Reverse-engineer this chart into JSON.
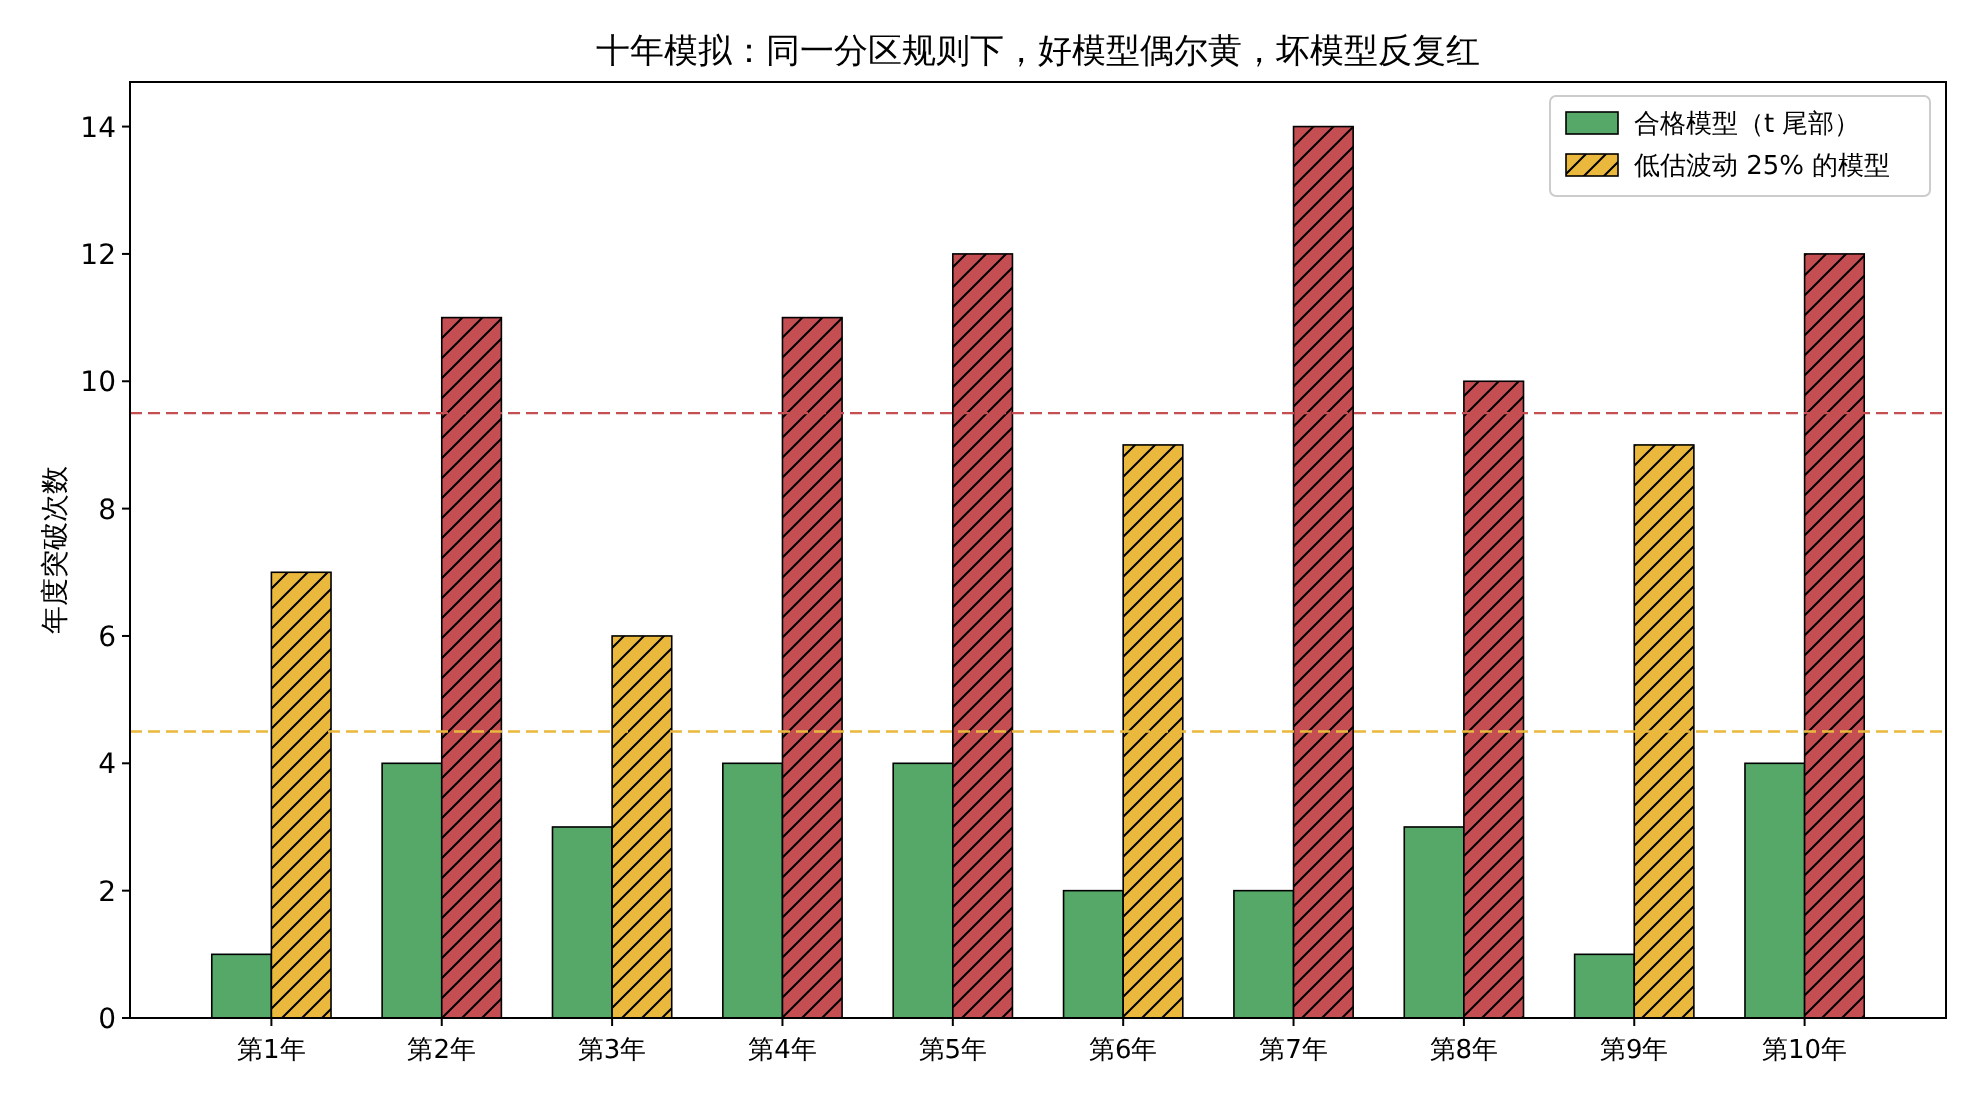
{
  "chart_data": {
    "type": "bar",
    "title": "十年模拟：同一分区规则下，好模型偶尔黄，坏模型反复红",
    "ylabel": "年度突破次数",
    "categories": [
      "第1年",
      "第2年",
      "第3年",
      "第4年",
      "第5年",
      "第6年",
      "第7年",
      "第8年",
      "第9年",
      "第10年"
    ],
    "series": [
      {
        "name": "合格模型（t 尾部）",
        "color": "#55a868",
        "values": [
          1,
          4,
          3,
          4,
          4,
          2,
          2,
          3,
          1,
          4
        ]
      },
      {
        "name": "低估波动 25% 的模型",
        "color": "#e9b83c",
        "colors": [
          "#e9b83c",
          "#c44e52",
          "#e9b83c",
          "#c44e52",
          "#c44e52",
          "#e9b83c",
          "#c44e52",
          "#c44e52",
          "#e9b83c",
          "#c44e52"
        ],
        "values": [
          7,
          11,
          6,
          11,
          12,
          9,
          14,
          10,
          9,
          12
        ]
      }
    ],
    "ylim": [
      0,
      14.7
    ],
    "yticks": [
      0,
      2,
      4,
      6,
      8,
      10,
      12,
      14
    ],
    "ref_lines": [
      {
        "axis": "y",
        "value": 9.5,
        "color": "#c44e52",
        "line_style": "dashed"
      },
      {
        "axis": "y",
        "value": 4.5,
        "color": "#e9b83c",
        "line_style": "dashed"
      }
    ],
    "legend": "top right"
  }
}
